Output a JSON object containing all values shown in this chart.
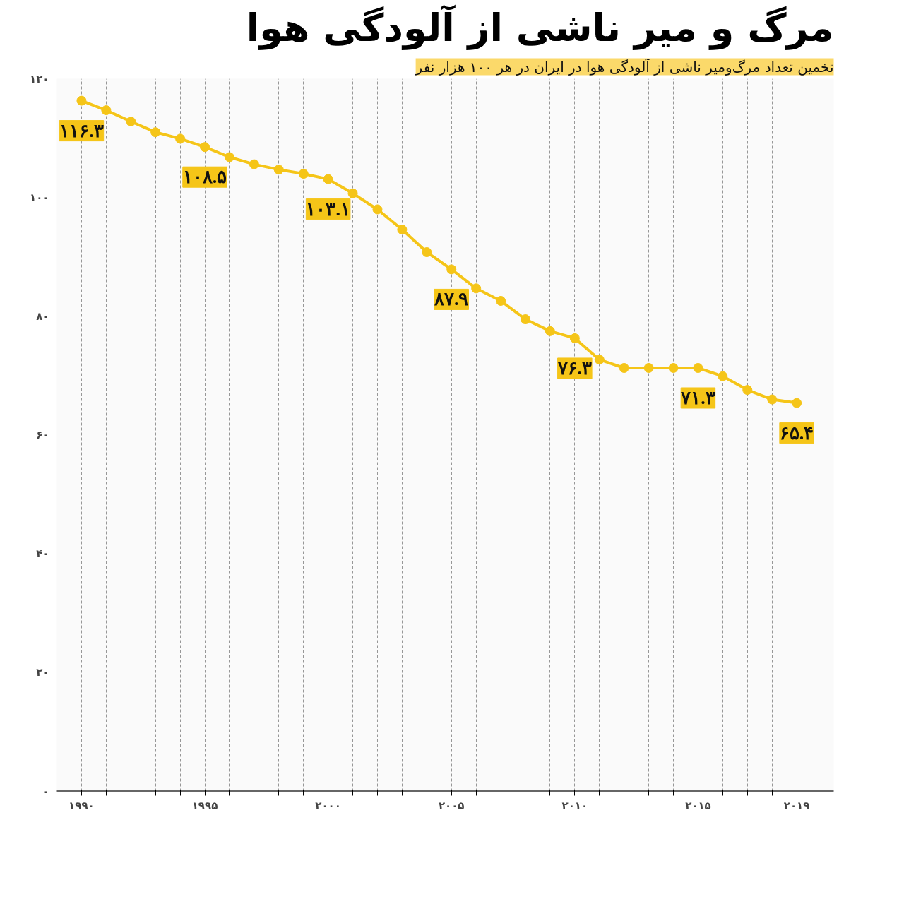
{
  "chart_data": {
    "type": "line",
    "title": "مرگ و میر ناشی از آلودگی هوا",
    "subtitle": "تخمین تعداد مرگ‌ومیر ناشی از آلودگی هوا در ایران در هر ۱۰۰ هزار نفر",
    "x": [
      1990,
      1991,
      1992,
      1993,
      1994,
      1995,
      1996,
      1997,
      1998,
      1999,
      2000,
      2001,
      2002,
      2003,
      2004,
      2005,
      2006,
      2007,
      2008,
      2009,
      2010,
      2011,
      2012,
      2013,
      2014,
      2015,
      2016,
      2017,
      2018,
      2019
    ],
    "series": [
      {
        "color": "#f5c518",
        "values": [
          116.3,
          114.7,
          112.8,
          111.0,
          109.9,
          108.5,
          106.8,
          105.6,
          104.7,
          104.0,
          103.1,
          100.7,
          98.0,
          94.6,
          90.8,
          87.9,
          84.7,
          82.6,
          79.5,
          77.5,
          76.3,
          72.7,
          71.3,
          71.3,
          71.3,
          71.3,
          69.9,
          67.6,
          66.0,
          65.4
        ],
        "value_labels": [
          "۱۱۶.۳",
          null,
          null,
          null,
          null,
          "۱۰۸.۵",
          null,
          null,
          null,
          null,
          "۱۰۳.۱",
          null,
          null,
          null,
          null,
          "۸۷.۹",
          null,
          null,
          null,
          null,
          "۷۶.۳",
          null,
          null,
          null,
          null,
          "۷۱.۳",
          null,
          null,
          null,
          "۶۵.۴"
        ]
      }
    ],
    "xlim": [
      1989,
      2020.5
    ],
    "xticks": [
      {
        "value": 1990,
        "label": "۱۹۹۰"
      },
      {
        "value": 1991,
        "label": null
      },
      {
        "value": 1992,
        "label": null
      },
      {
        "value": 1993,
        "label": null
      },
      {
        "value": 1994,
        "label": null
      },
      {
        "value": 1995,
        "label": "۱۹۹۵"
      },
      {
        "value": 1996,
        "label": null
      },
      {
        "value": 1997,
        "label": null
      },
      {
        "value": 1998,
        "label": null
      },
      {
        "value": 1999,
        "label": null
      },
      {
        "value": 2000,
        "label": "۲۰۰۰"
      },
      {
        "value": 2001,
        "label": null
      },
      {
        "value": 2002,
        "label": null
      },
      {
        "value": 2003,
        "label": null
      },
      {
        "value": 2004,
        "label": null
      },
      {
        "value": 2005,
        "label": "۲۰۰۵"
      },
      {
        "value": 2006,
        "label": null
      },
      {
        "value": 2007,
        "label": null
      },
      {
        "value": 2008,
        "label": null
      },
      {
        "value": 2009,
        "label": null
      },
      {
        "value": 2010,
        "label": "۲۰۱۰"
      },
      {
        "value": 2011,
        "label": null
      },
      {
        "value": 2012,
        "label": null
      },
      {
        "value": 2013,
        "label": null
      },
      {
        "value": 2014,
        "label": null
      },
      {
        "value": 2015,
        "label": "۲۰۱۵"
      },
      {
        "value": 2016,
        "label": null
      },
      {
        "value": 2017,
        "label": null
      },
      {
        "value": 2018,
        "label": null
      },
      {
        "value": 2019,
        "label": "۲۰۱۹"
      }
    ],
    "ylim": [
      0,
      120
    ],
    "yticks": [
      {
        "value": 0,
        "label": "۰"
      },
      {
        "value": 20,
        "label": "۲۰"
      },
      {
        "value": 40,
        "label": "۴۰"
      },
      {
        "value": 60,
        "label": "۶۰"
      },
      {
        "value": 80,
        "label": "۸۰"
      },
      {
        "value": 100,
        "label": "۱۰۰"
      },
      {
        "value": 120,
        "label": "۱۲۰"
      }
    ],
    "grid": "x",
    "marker": "circle",
    "line_style": "solid"
  }
}
